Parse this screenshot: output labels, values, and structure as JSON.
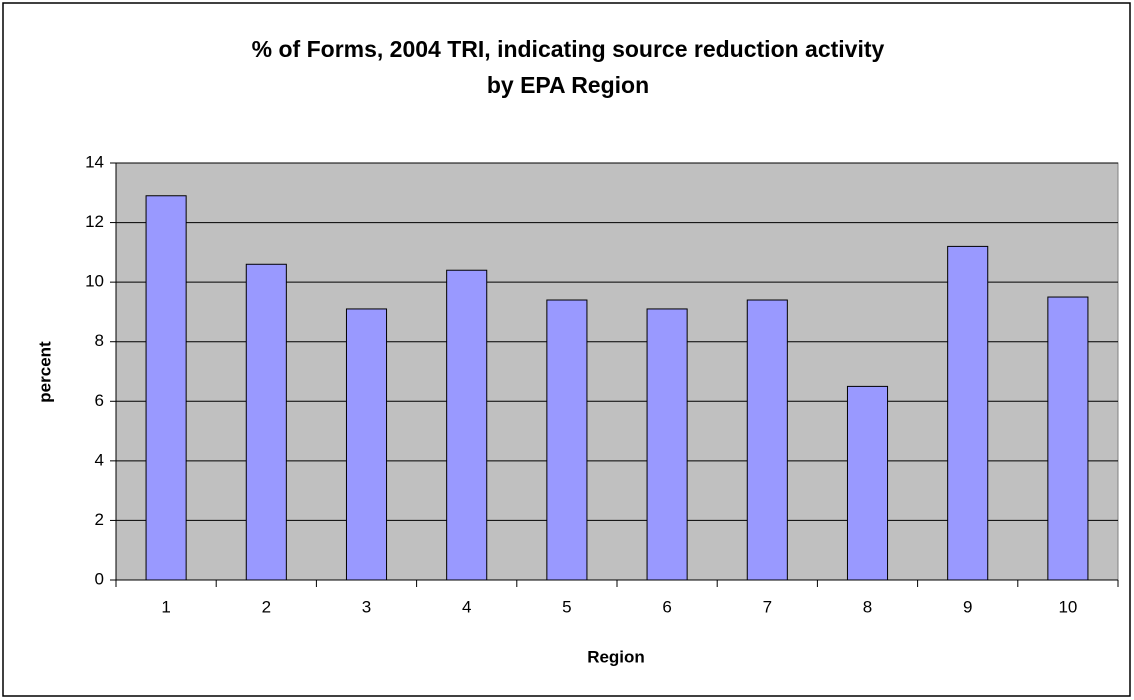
{
  "chart_data": {
    "type": "bar",
    "title": [
      "% of Forms, 2004 TRI, indicating source reduction activity",
      "by EPA Region"
    ],
    "x_label": "Region",
    "y_label": "percent",
    "categories": [
      "1",
      "2",
      "3",
      "4",
      "5",
      "6",
      "7",
      "8",
      "9",
      "10"
    ],
    "values": [
      12.9,
      10.6,
      9.1,
      10.4,
      9.4,
      9.1,
      9.4,
      6.5,
      11.2,
      9.5
    ],
    "color": "#9999ff",
    "plot_background": "#c0c0c0",
    "ylim": [
      0,
      14
    ],
    "yticks": [
      0,
      2,
      4,
      6,
      8,
      10,
      12,
      14
    ],
    "grid": true
  }
}
